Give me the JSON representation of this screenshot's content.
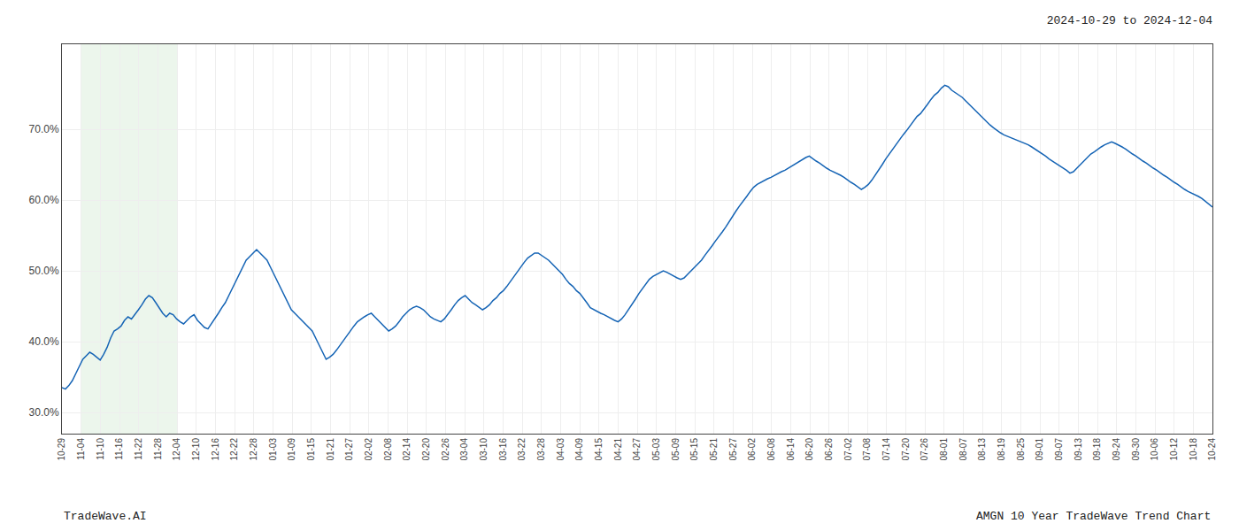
{
  "chart_data": {
    "type": "line",
    "title": "2024-10-29 to 2024-12-04",
    "annotations": [
      "TradeWave.AI",
      "AMGN 10 Year TradeWave Trend Chart"
    ],
    "color": "#1564b5",
    "grid": true,
    "xlim": [
      0,
      331
    ],
    "xticks": [
      {
        "value": 0,
        "label": "10-29"
      },
      {
        "value": 5.5167,
        "label": "11-04"
      },
      {
        "value": 11.0333,
        "label": "11-10"
      },
      {
        "value": 16.55,
        "label": "11-16"
      },
      {
        "value": 22.0667,
        "label": "11-22"
      },
      {
        "value": 27.5833,
        "label": "11-28"
      },
      {
        "value": 33.1,
        "label": "12-04"
      },
      {
        "value": 38.6167,
        "label": "12-10"
      },
      {
        "value": 44.1333,
        "label": "12-16"
      },
      {
        "value": 49.65,
        "label": "12-22"
      },
      {
        "value": 55.1667,
        "label": "12-28"
      },
      {
        "value": 60.6833,
        "label": "01-03"
      },
      {
        "value": 66.2,
        "label": "01-09"
      },
      {
        "value": 71.7167,
        "label": "01-15"
      },
      {
        "value": 77.2333,
        "label": "01-21"
      },
      {
        "value": 82.75,
        "label": "01-27"
      },
      {
        "value": 88.2667,
        "label": "02-02"
      },
      {
        "value": 93.7833,
        "label": "02-08"
      },
      {
        "value": 99.3,
        "label": "02-14"
      },
      {
        "value": 104.8167,
        "label": "02-20"
      },
      {
        "value": 110.3333,
        "label": "02-26"
      },
      {
        "value": 115.85,
        "label": "03-04"
      },
      {
        "value": 121.3667,
        "label": "03-10"
      },
      {
        "value": 126.8833,
        "label": "03-16"
      },
      {
        "value": 132.4,
        "label": "03-22"
      },
      {
        "value": 137.9167,
        "label": "03-28"
      },
      {
        "value": 143.4333,
        "label": "04-03"
      },
      {
        "value": 148.95,
        "label": "04-09"
      },
      {
        "value": 154.4667,
        "label": "04-15"
      },
      {
        "value": 159.9833,
        "label": "04-21"
      },
      {
        "value": 165.5,
        "label": "04-27"
      },
      {
        "value": 171.0167,
        "label": "05-03"
      },
      {
        "value": 176.5333,
        "label": "05-09"
      },
      {
        "value": 182.05,
        "label": "05-15"
      },
      {
        "value": 187.5667,
        "label": "05-21"
      },
      {
        "value": 193.0833,
        "label": "05-27"
      },
      {
        "value": 198.6,
        "label": "06-02"
      },
      {
        "value": 204.1167,
        "label": "06-08"
      },
      {
        "value": 209.6333,
        "label": "06-14"
      },
      {
        "value": 215.15,
        "label": "06-20"
      },
      {
        "value": 220.6667,
        "label": "06-26"
      },
      {
        "value": 226.1833,
        "label": "07-02"
      },
      {
        "value": 231.7,
        "label": "07-08"
      },
      {
        "value": 237.2167,
        "label": "07-14"
      },
      {
        "value": 242.7333,
        "label": "07-20"
      },
      {
        "value": 248.25,
        "label": "07-26"
      },
      {
        "value": 253.7667,
        "label": "08-01"
      },
      {
        "value": 259.2833,
        "label": "08-07"
      },
      {
        "value": 264.8,
        "label": "08-13"
      },
      {
        "value": 270.3167,
        "label": "08-19"
      },
      {
        "value": 275.8333,
        "label": "08-25"
      },
      {
        "value": 281.35,
        "label": "09-01"
      },
      {
        "value": 286.8667,
        "label": "09-07"
      },
      {
        "value": 292.3833,
        "label": "09-13"
      },
      {
        "value": 297.9,
        "label": "09-18"
      },
      {
        "value": 303.4167,
        "label": "09-24"
      },
      {
        "value": 308.9333,
        "label": "09-30"
      },
      {
        "value": 314.45,
        "label": "10-06"
      },
      {
        "value": 319.9667,
        "label": "10-12"
      },
      {
        "value": 325.4833,
        "label": "10-18"
      },
      {
        "value": 331,
        "label": "10-24"
      }
    ],
    "highlight": {
      "from": 5.5167,
      "to": 33.1,
      "color": "#c8e6c9"
    },
    "ylim": [
      0.27,
      0.82
    ],
    "yticks": [
      {
        "value": 0.3,
        "label": "30.0%"
      },
      {
        "value": 0.4,
        "label": "40.0%"
      },
      {
        "value": 0.5,
        "label": "50.0%"
      },
      {
        "value": 0.6,
        "label": "60.0%"
      },
      {
        "value": 0.7,
        "label": "70.0%"
      }
    ],
    "values": [
      0.335,
      0.333,
      0.338,
      0.345,
      0.355,
      0.365,
      0.375,
      0.38,
      0.385,
      0.382,
      0.378,
      0.374,
      0.382,
      0.392,
      0.405,
      0.415,
      0.418,
      0.422,
      0.43,
      0.435,
      0.432,
      0.438,
      0.445,
      0.452,
      0.46,
      0.465,
      0.462,
      0.455,
      0.448,
      0.44,
      0.435,
      0.44,
      0.438,
      0.432,
      0.428,
      0.425,
      0.43,
      0.435,
      0.438,
      0.43,
      0.425,
      0.42,
      0.418,
      0.425,
      0.432,
      0.44,
      0.448,
      0.455,
      0.465,
      0.475,
      0.485,
      0.495,
      0.505,
      0.515,
      0.52,
      0.525,
      0.53,
      0.525,
      0.52,
      0.515,
      0.505,
      0.495,
      0.485,
      0.475,
      0.465,
      0.455,
      0.445,
      0.44,
      0.435,
      0.43,
      0.425,
      0.42,
      0.415,
      0.405,
      0.395,
      0.385,
      0.375,
      0.378,
      0.382,
      0.388,
      0.395,
      0.402,
      0.408,
      0.415,
      0.422,
      0.428,
      0.432,
      0.435,
      0.438,
      0.44,
      0.435,
      0.43,
      0.425,
      0.42,
      0.415,
      0.418,
      0.422,
      0.428,
      0.435,
      0.44,
      0.445,
      0.448,
      0.45,
      0.448,
      0.445,
      0.44,
      0.435,
      0.432,
      0.43,
      0.428,
      0.432,
      0.438,
      0.445,
      0.452,
      0.458,
      0.462,
      0.465,
      0.46,
      0.455,
      0.452,
      0.448,
      0.445,
      0.448,
      0.452,
      0.458,
      0.462,
      0.468,
      0.472,
      0.478,
      0.485,
      0.492,
      0.498,
      0.505,
      0.512,
      0.518,
      0.522,
      0.525,
      0.525,
      0.522,
      0.518,
      0.515,
      0.51,
      0.505,
      0.5,
      0.495,
      0.488,
      0.482,
      0.478,
      0.472,
      0.468,
      0.462,
      0.455,
      0.448,
      0.445,
      0.442,
      0.44,
      0.438,
      0.435,
      0.432,
      0.43,
      0.428,
      0.432,
      0.438,
      0.445,
      0.452,
      0.46,
      0.468,
      0.475,
      0.482,
      0.488,
      0.492,
      0.495,
      0.498,
      0.5,
      0.498,
      0.495,
      0.492,
      0.49,
      0.488,
      0.49,
      0.495,
      0.5,
      0.505,
      0.51,
      0.515,
      0.522,
      0.528,
      0.535,
      0.542,
      0.548,
      0.555,
      0.562,
      0.57,
      0.578,
      0.585,
      0.592,
      0.598,
      0.605,
      0.612,
      0.618,
      0.622,
      0.625,
      0.628,
      0.63,
      0.632,
      0.635,
      0.638,
      0.64,
      0.642,
      0.645,
      0.648,
      0.652,
      0.655,
      0.658,
      0.66,
      0.662,
      0.658,
      0.655,
      0.652,
      0.648,
      0.645,
      0.642,
      0.64,
      0.638,
      0.635,
      0.632,
      0.628,
      0.625,
      0.622,
      0.618,
      0.615,
      0.618,
      0.622,
      0.628,
      0.635,
      0.642,
      0.65,
      0.658,
      0.665,
      0.672,
      0.678,
      0.685,
      0.692,
      0.698,
      0.705,
      0.712,
      0.718,
      0.722,
      0.728,
      0.735,
      0.742,
      0.748,
      0.752,
      0.758,
      0.762,
      0.76,
      0.755,
      0.752,
      0.748,
      0.745,
      0.74,
      0.735,
      0.73,
      0.725,
      0.72,
      0.715,
      0.71,
      0.706,
      0.702,
      0.698,
      0.695,
      0.692,
      0.69,
      0.688,
      0.686,
      0.685,
      0.682,
      0.68,
      0.678,
      0.675,
      0.672,
      0.668,
      0.665,
      0.662,
      0.658,
      0.655,
      0.652,
      0.648,
      0.645,
      0.642,
      0.638,
      0.64,
      0.645,
      0.65,
      0.655,
      0.66,
      0.665,
      0.668,
      0.672,
      0.675,
      0.678,
      0.68,
      0.682,
      0.68,
      0.678,
      0.675,
      0.672,
      0.668,
      0.665,
      0.662,
      0.658,
      0.655,
      0.652,
      0.648,
      0.645,
      0.642,
      0.638,
      0.635,
      0.632,
      0.628,
      0.625,
      0.622,
      0.618,
      0.615,
      0.612,
      0.61,
      0.608,
      0.605,
      0.602,
      0.598,
      0.595,
      0.59
    ]
  }
}
